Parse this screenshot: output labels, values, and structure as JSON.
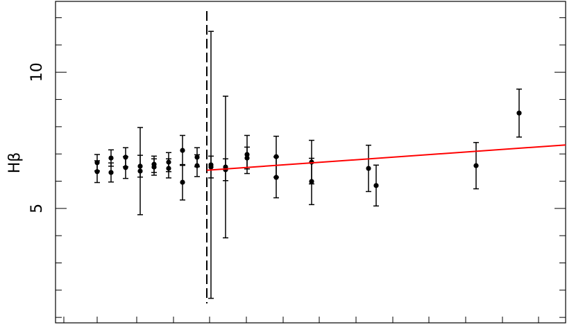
{
  "chart_data": {
    "type": "scatter",
    "y_label": "Hβ",
    "xlim": [
      0,
      735
    ],
    "ylim": [
      0.8,
      12.6
    ],
    "yticks": [
      5,
      10
    ],
    "y_minor_ticks": [
      1,
      2,
      3,
      4,
      6,
      7,
      8,
      9,
      11,
      12
    ],
    "x_tick_marks": [
      12,
      60,
      117,
      170,
      222,
      275,
      328,
      380,
      433,
      486,
      538,
      591,
      644,
      696
    ],
    "series": [
      {
        "color": "#000000",
        "x": [
          60,
          60,
          80,
          80,
          101,
          101,
          122,
          122,
          142,
          142,
          163,
          163,
          183,
          183,
          204,
          204,
          224,
          224,
          245,
          245,
          276,
          276,
          318,
          318,
          369,
          369,
          451,
          462,
          606,
          668
        ],
        "values": [
          6.35,
          6.68,
          6.32,
          6.85,
          6.5,
          6.88,
          6.37,
          6.55,
          6.62,
          6.52,
          6.7,
          6.47,
          7.13,
          5.96,
          6.88,
          6.57,
          6.6,
          6.52,
          6.52,
          6.42,
          6.98,
          6.85,
          6.9,
          6.14,
          6.7,
          5.99,
          6.47,
          5.84,
          6.57,
          8.5
        ],
        "errors": [
          0.4,
          0.3,
          0.35,
          0.3,
          0.4,
          0.35,
          1.6,
          0.4,
          0.3,
          0.3,
          0.35,
          0.35,
          0.55,
          0.65,
          0.35,
          0.4,
          4.9,
          0.4,
          2.6,
          0.4,
          0.7,
          0.4,
          0.75,
          0.75,
          0.8,
          0.85,
          0.85,
          0.75,
          0.85,
          0.88
        ]
      }
    ],
    "fit": {
      "color": "#ff0000",
      "x": [
        218,
        735
      ],
      "y": [
        6.4,
        7.33
      ]
    },
    "vline": {
      "x": 218,
      "style": "dashed"
    }
  }
}
